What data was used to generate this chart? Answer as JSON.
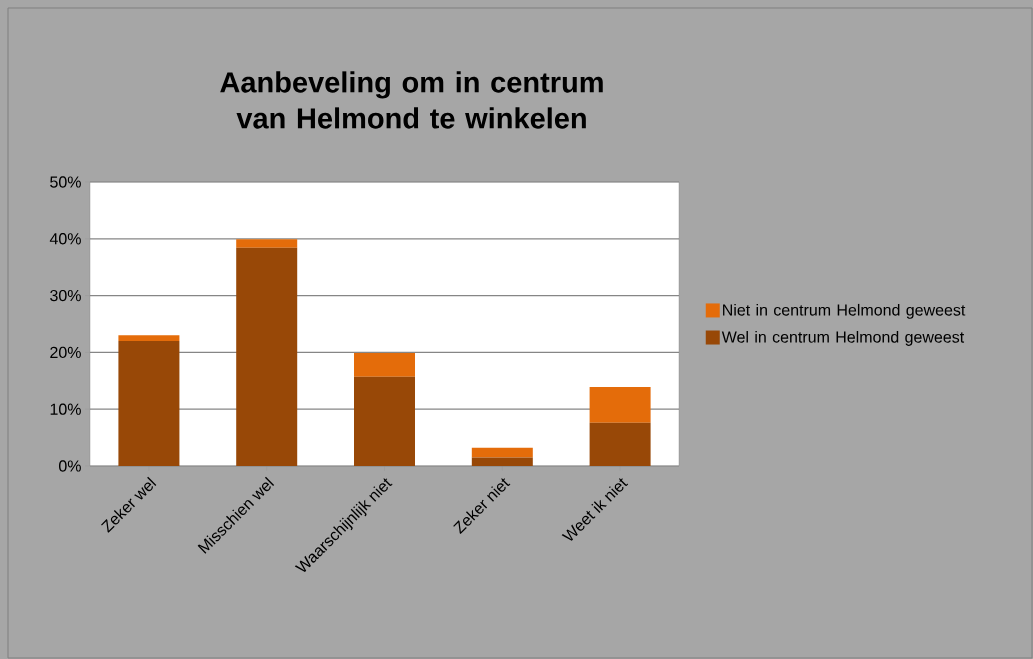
{
  "chart_data": {
    "type": "bar",
    "title": "Aanbeveling om in centrum van Helmond te winkelen",
    "categories": [
      "Zeker wel",
      "Misschien wel",
      "Waarschijnlijk niet",
      "Zeker niet",
      "Weet ik niet"
    ],
    "series": [
      {
        "name": "Wel in centrum Helmond geweest",
        "color": "#984807",
        "values": [
          22.0,
          38.4,
          15.7,
          1.5,
          7.6
        ]
      },
      {
        "name": "Niet in centrum Helmond geweest",
        "color": "#e46c0a",
        "values": [
          1.0,
          1.5,
          4.2,
          1.7,
          6.3
        ]
      }
    ],
    "stacked": true,
    "ylim": [
      0,
      50
    ],
    "yticks": [
      {
        "value": 0,
        "label": "0%"
      },
      {
        "value": 10,
        "label": "10%"
      },
      {
        "value": 20,
        "label": "20%"
      },
      {
        "value": 30,
        "label": "30%"
      },
      {
        "value": 40,
        "label": "40%"
      },
      {
        "value": 50,
        "label": "50%"
      }
    ],
    "grid": "y",
    "legend": "right"
  }
}
